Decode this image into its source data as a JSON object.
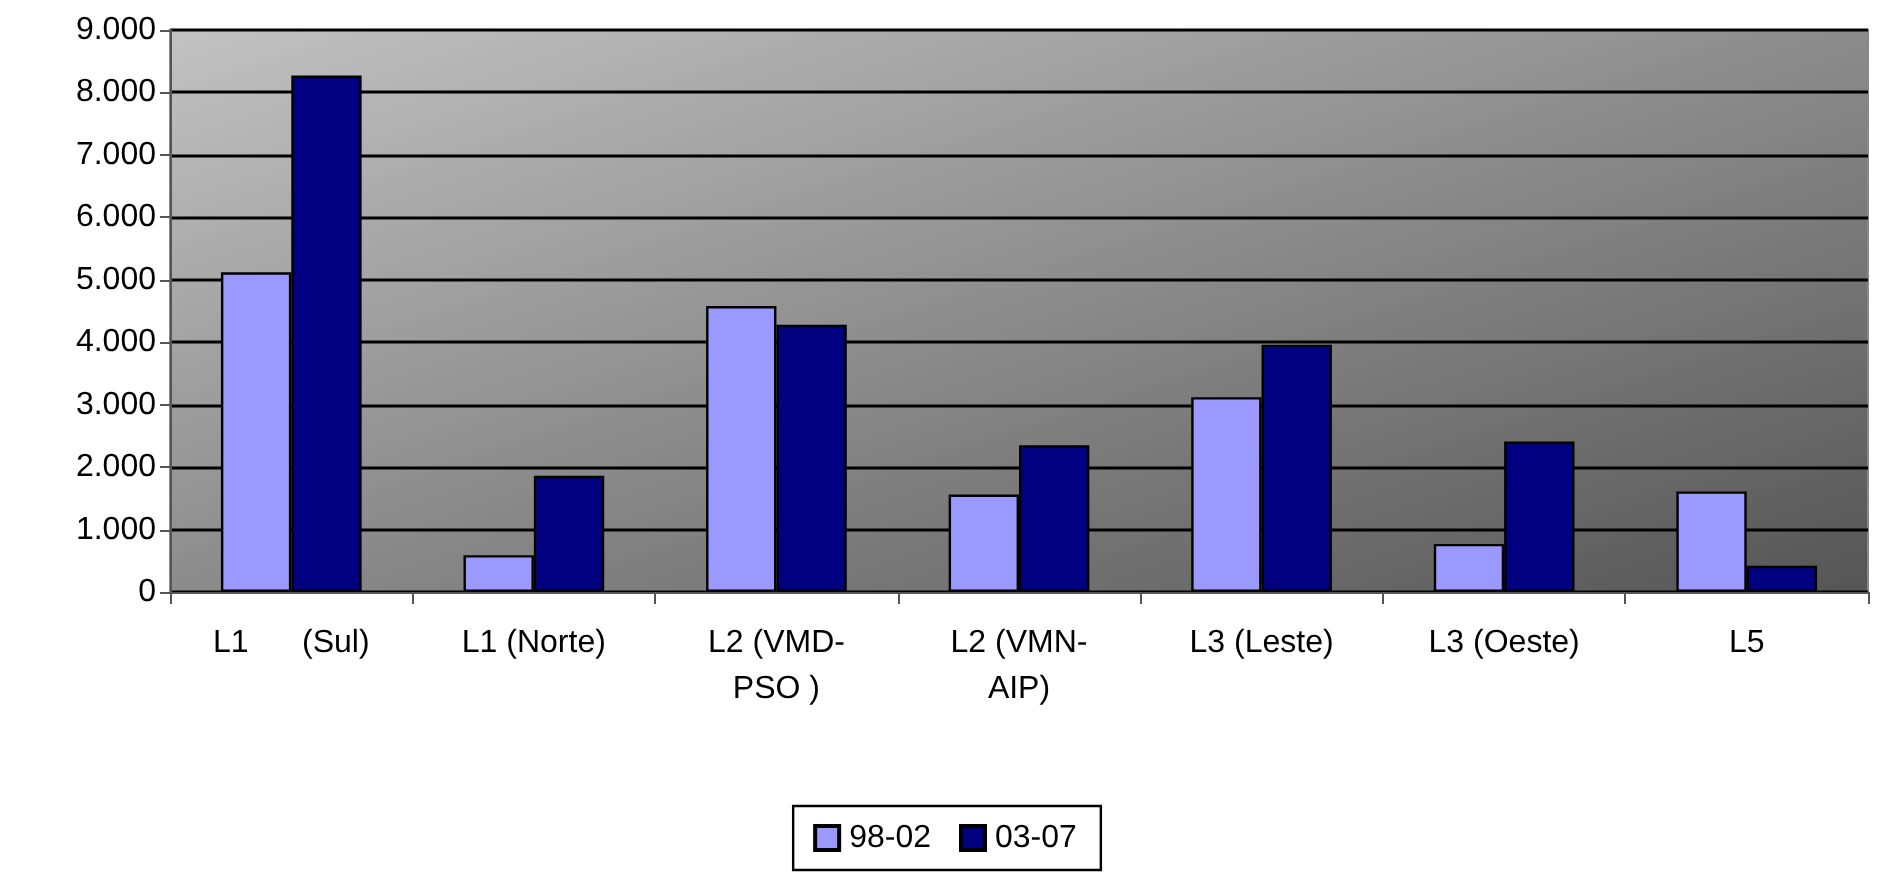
{
  "chart_data": {
    "type": "bar",
    "categories": [
      "L1      (Sul)",
      "L1 (Norte)",
      "L2 (VMD-PSO )",
      "L2 (VMN-AIP)",
      "L3 (Leste)",
      "L3 (Oeste)",
      "L5"
    ],
    "series": [
      {
        "name": "98-02",
        "color": "#9999ff",
        "values": [
          5120,
          590,
          4580,
          1560,
          3120,
          770,
          1610
        ]
      },
      {
        "name": "03-07",
        "color": "#000080",
        "values": [
          8270,
          1860,
          4280,
          2350,
          3960,
          2410,
          420
        ]
      }
    ],
    "ylim": [
      0,
      9000
    ],
    "yticks": [
      0,
      {
        "value": 1000,
        "label": "1.000"
      },
      {
        "value": 2000,
        "label": "2.000"
      },
      {
        "value": 3000,
        "label": "3.000"
      },
      {
        "value": 4000,
        "label": "4.000"
      },
      {
        "value": 5000,
        "label": "5.000"
      },
      {
        "value": 6000,
        "label": "6.000"
      },
      {
        "value": 7000,
        "label": "7.000"
      },
      {
        "value": 8000,
        "label": "8.000"
      },
      {
        "value": 9000,
        "label": "9.000"
      }
    ],
    "grid": "y",
    "legend": "bottom"
  }
}
